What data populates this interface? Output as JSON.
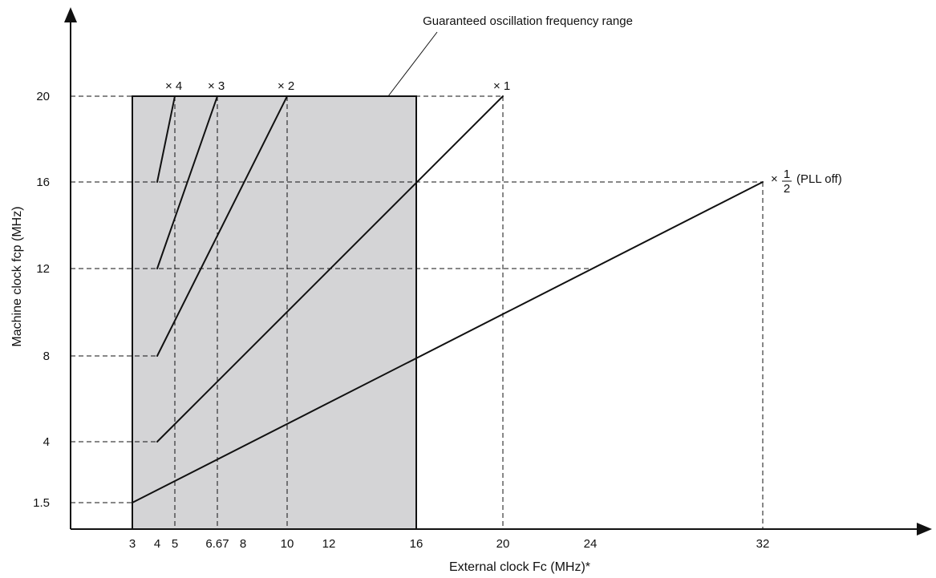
{
  "chart_data": {
    "type": "line",
    "xlabel": "External clock Fc (MHz)*",
    "ylabel": "Machine clock fcp (MHz)",
    "x_ticks": [
      3,
      4,
      5,
      6.67,
      8,
      10,
      12,
      16,
      20,
      24,
      32
    ],
    "x_tick_labels": [
      "3",
      "4",
      "5",
      "6.67",
      "8",
      "10",
      "12",
      "16",
      "20",
      "24",
      "32"
    ],
    "y_ticks": [
      1.5,
      4,
      8,
      12,
      16,
      20
    ],
    "y_tick_labels": [
      "1.5",
      "4",
      "8",
      "12",
      "16",
      "20"
    ],
    "shaded_region": {
      "label": "Guaranteed oscillation frequency range",
      "x_range": [
        3,
        16
      ],
      "y_range": [
        0,
        20
      ],
      "color": "#d4d4d6"
    },
    "series": [
      {
        "name": "× 4",
        "x": [
          4,
          5
        ],
        "y": [
          16,
          20
        ]
      },
      {
        "name": "× 3",
        "x": [
          4,
          6.67
        ],
        "y": [
          12,
          20
        ]
      },
      {
        "name": "× 2",
        "x": [
          4,
          10
        ],
        "y": [
          8,
          20
        ]
      },
      {
        "name": "× 1",
        "x": [
          4,
          20
        ],
        "y": [
          4,
          20
        ]
      },
      {
        "name": "× 1/2 (PLL off)",
        "x": [
          3,
          32
        ],
        "y": [
          1.5,
          16
        ]
      }
    ],
    "guide_lines_dashed": true,
    "grid": false,
    "line_color": "#111111"
  }
}
